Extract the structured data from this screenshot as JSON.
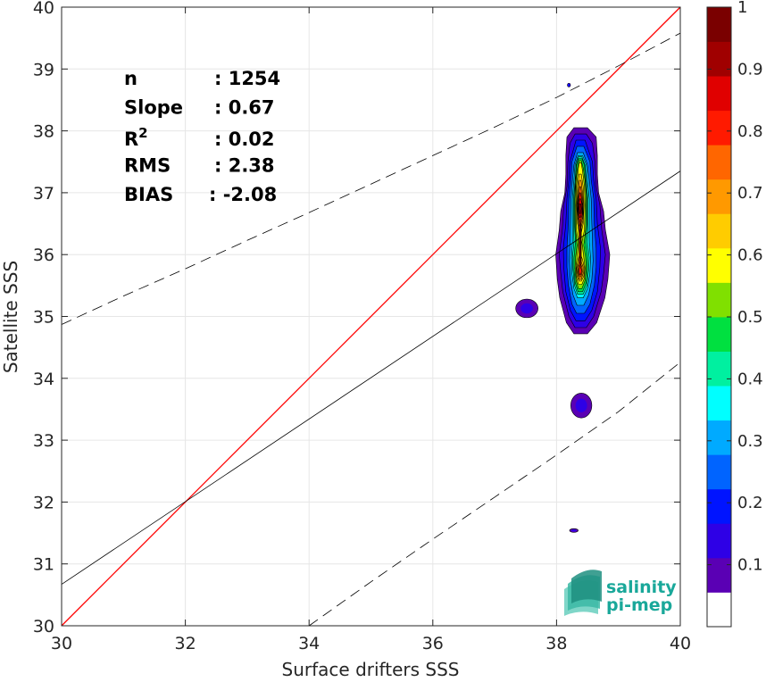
{
  "chart_data": {
    "type": "scatter",
    "title": "",
    "xlabel": "Surface drifters SSS",
    "ylabel": "Satellite SSS",
    "xlim": [
      30,
      40
    ],
    "ylim": [
      30,
      40
    ],
    "xticks": [
      "30",
      "32",
      "34",
      "36",
      "38",
      "40"
    ],
    "yticks": [
      "30",
      "31",
      "32",
      "33",
      "34",
      "35",
      "36",
      "37",
      "38",
      "39",
      "40"
    ],
    "grid": true,
    "stats": [
      {
        "label": "n",
        "sep": ": ",
        "value": "1254"
      },
      {
        "label": "Slope",
        "sep": ": ",
        "value": "0.67"
      },
      {
        "label": "R",
        "sup": "2",
        "sep": ": ",
        "value": "0.02"
      },
      {
        "label": "RMS",
        "sep": ": ",
        "value": "2.38"
      },
      {
        "label": "BIAS",
        "sep": ": ",
        "value": "-2.08"
      }
    ],
    "identity_line": {
      "x": [
        30,
        40
      ],
      "y": [
        30,
        40
      ],
      "color": "#ff0000"
    },
    "regression_line": {
      "x": [
        30,
        40
      ],
      "y": [
        30.67,
        37.35
      ],
      "color": "#000000"
    },
    "upper_dashed_curve": {
      "x": [
        30,
        31,
        32,
        33,
        34,
        35,
        36,
        37,
        38,
        39,
        40
      ],
      "y": [
        34.87,
        35.33,
        35.77,
        36.23,
        36.68,
        37.14,
        37.6,
        38.06,
        38.54,
        39.05,
        39.58
      ]
    },
    "lower_dashed_curve": {
      "x": [
        34,
        35,
        36,
        37,
        38,
        39,
        40
      ],
      "y": [
        30.0,
        30.71,
        31.4,
        32.08,
        32.76,
        33.46,
        34.26
      ]
    },
    "density": {
      "colorbar": {
        "range": [
          0,
          1
        ],
        "ticks": [
          "0.1",
          "0.2",
          "0.3",
          "0.4",
          "0.5",
          "0.6",
          "0.7",
          "0.8",
          "0.9",
          "1"
        ],
        "colors": [
          "#ffffff",
          "#5a00b4",
          "#2e00e6",
          "#0014ff",
          "#0064ff",
          "#00aaff",
          "#00ffff",
          "#00f0a0",
          "#00e040",
          "#80e000",
          "#ffff00",
          "#ffcc00",
          "#ff9900",
          "#ff6600",
          "#ff1a00",
          "#e00000",
          "#a00000",
          "#7a0000"
        ]
      },
      "main_blob": {
        "center_x": 38.38,
        "levels": [
          {
            "value": 0.1,
            "color": "#5a00b4",
            "profile": [
              [
                34.72,
                0.12
              ],
              [
                34.9,
                0.27
              ],
              [
                35.3,
                0.4
              ],
              [
                35.6,
                0.45
              ],
              [
                36.0,
                0.48
              ],
              [
                36.4,
                0.41
              ],
              [
                36.7,
                0.38
              ],
              [
                37.0,
                0.3
              ],
              [
                37.3,
                0.28
              ],
              [
                37.6,
                0.28
              ],
              [
                37.9,
                0.26
              ],
              [
                38.05,
                0.12
              ]
            ]
          },
          {
            "value": 0.15,
            "color": "#2e00e6",
            "profile": [
              [
                34.82,
                0.1
              ],
              [
                35.0,
                0.22
              ],
              [
                35.4,
                0.34
              ],
              [
                35.7,
                0.38
              ],
              [
                36.0,
                0.41
              ],
              [
                36.4,
                0.35
              ],
              [
                36.8,
                0.32
              ],
              [
                37.1,
                0.26
              ],
              [
                37.5,
                0.24
              ],
              [
                37.8,
                0.2
              ],
              [
                37.95,
                0.1
              ]
            ]
          },
          {
            "value": 0.2,
            "color": "#0014ff",
            "profile": [
              [
                34.93,
                0.08
              ],
              [
                35.1,
                0.19
              ],
              [
                35.4,
                0.28
              ],
              [
                35.8,
                0.32
              ],
              [
                36.1,
                0.33
              ],
              [
                36.5,
                0.28
              ],
              [
                36.9,
                0.26
              ],
              [
                37.2,
                0.22
              ],
              [
                37.5,
                0.2
              ],
              [
                37.85,
                0.08
              ]
            ]
          },
          {
            "value": 0.25,
            "color": "#0064ff",
            "profile": [
              [
                35.05,
                0.07
              ],
              [
                35.2,
                0.16
              ],
              [
                35.5,
                0.23
              ],
              [
                35.8,
                0.26
              ],
              [
                36.1,
                0.26
              ],
              [
                36.5,
                0.23
              ],
              [
                36.9,
                0.22
              ],
              [
                37.2,
                0.18
              ],
              [
                37.5,
                0.16
              ],
              [
                37.75,
                0.06
              ]
            ]
          },
          {
            "value": 0.3,
            "color": "#00aaff",
            "profile": [
              [
                35.18,
                0.06
              ],
              [
                35.35,
                0.14
              ],
              [
                35.6,
                0.19
              ],
              [
                35.9,
                0.21
              ],
              [
                36.2,
                0.2
              ],
              [
                36.5,
                0.19
              ],
              [
                36.9,
                0.18
              ],
              [
                37.2,
                0.15
              ],
              [
                37.45,
                0.12
              ],
              [
                37.65,
                0.05
              ]
            ]
          },
          {
            "value": 0.4,
            "color": "#00ffff",
            "profile": [
              [
                35.3,
                0.05
              ],
              [
                35.45,
                0.12
              ],
              [
                35.7,
                0.16
              ],
              [
                35.95,
                0.17
              ],
              [
                36.2,
                0.15
              ],
              [
                36.5,
                0.15
              ],
              [
                36.9,
                0.15
              ],
              [
                37.2,
                0.12
              ],
              [
                37.45,
                0.1
              ],
              [
                37.6,
                0.04
              ]
            ]
          },
          {
            "value": 0.45,
            "color": "#00f0a0",
            "profile": [
              [
                35.36,
                0.05
              ],
              [
                35.5,
                0.11
              ],
              [
                35.75,
                0.14
              ],
              [
                35.95,
                0.15
              ],
              [
                36.2,
                0.12
              ],
              [
                36.5,
                0.13
              ],
              [
                36.9,
                0.13
              ],
              [
                37.2,
                0.1
              ],
              [
                37.45,
                0.08
              ],
              [
                37.58,
                0.03
              ]
            ]
          },
          {
            "value": 0.5,
            "color": "#00e040",
            "profile": [
              [
                35.4,
                0.04
              ],
              [
                35.55,
                0.1
              ],
              [
                35.75,
                0.12
              ],
              [
                35.95,
                0.12
              ],
              [
                36.2,
                0.09
              ],
              [
                36.5,
                0.11
              ],
              [
                36.9,
                0.11
              ],
              [
                37.2,
                0.09
              ],
              [
                37.45,
                0.07
              ],
              [
                37.55,
                0.03
              ]
            ]
          },
          {
            "value": 0.55,
            "color": "#80e000",
            "profile": [
              [
                35.45,
                0.03
              ],
              [
                35.58,
                0.08
              ],
              [
                35.78,
                0.1
              ],
              [
                35.95,
                0.09
              ],
              [
                36.15,
                0.06
              ],
              [
                36.4,
                0.09
              ],
              [
                36.9,
                0.1
              ],
              [
                37.2,
                0.08
              ],
              [
                37.4,
                0.05
              ],
              [
                37.52,
                0.02
              ]
            ]
          },
          {
            "value": 0.6,
            "color": "#ffff00",
            "profile": [
              [
                35.52,
                0.03
              ],
              [
                35.62,
                0.07
              ],
              [
                35.78,
                0.08
              ],
              [
                35.95,
                0.06
              ],
              [
                36.2,
                0.03
              ],
              [
                36.4,
                0.07
              ],
              [
                36.8,
                0.08
              ],
              [
                37.1,
                0.07
              ],
              [
                37.35,
                0.04
              ],
              [
                37.48,
                0.02
              ]
            ]
          },
          {
            "value": 0.65,
            "color": "#ffcc00",
            "profile": [
              [
                35.57,
                0.02
              ],
              [
                35.65,
                0.06
              ],
              [
                35.78,
                0.07
              ],
              [
                35.92,
                0.04
              ],
              [
                36.0,
                0.01
              ],
              [
                36.35,
                0.02
              ],
              [
                36.5,
                0.05
              ],
              [
                36.8,
                0.065
              ],
              [
                37.1,
                0.05
              ],
              [
                37.3,
                0.02
              ]
            ]
          },
          {
            "value": 0.7,
            "color": "#ff9900",
            "profile": [
              [
                35.6,
                0.02
              ],
              [
                35.7,
                0.05
              ],
              [
                35.8,
                0.05
              ],
              [
                35.88,
                0.02
              ],
              [
                36.45,
                0.02
              ],
              [
                36.55,
                0.045
              ],
              [
                36.8,
                0.055
              ],
              [
                37.0,
                0.04
              ],
              [
                37.2,
                0.015
              ]
            ]
          },
          {
            "value": 0.8,
            "color": "#ff6600",
            "profile": [
              [
                35.64,
                0.015
              ],
              [
                35.72,
                0.035
              ],
              [
                35.8,
                0.03
              ],
              [
                35.85,
                0.01
              ],
              [
                36.5,
                0.015
              ],
              [
                36.6,
                0.04
              ],
              [
                36.8,
                0.045
              ],
              [
                36.95,
                0.03
              ],
              [
                37.1,
                0.01
              ]
            ]
          },
          {
            "value": 0.85,
            "color": "#ff1a00",
            "profile": [
              [
                35.67,
                0.01
              ],
              [
                35.74,
                0.025
              ],
              [
                35.8,
                0.01
              ],
              [
                36.55,
                0.01
              ],
              [
                36.65,
                0.035
              ],
              [
                36.8,
                0.038
              ],
              [
                36.92,
                0.02
              ],
              [
                37.0,
                0.008
              ]
            ]
          },
          {
            "value": 0.9,
            "color": "#e00000",
            "profile": [
              [
                36.6,
                0.008
              ],
              [
                36.7,
                0.028
              ],
              [
                36.8,
                0.03
              ],
              [
                36.9,
                0.012
              ]
            ]
          },
          {
            "value": 0.95,
            "color": "#a00000",
            "profile": [
              [
                36.66,
                0.006
              ],
              [
                36.74,
                0.018
              ],
              [
                36.82,
                0.012
              ]
            ]
          }
        ]
      },
      "islands": [
        {
          "x": 37.52,
          "y": 35.13,
          "rx": 0.18,
          "ry": 0.15,
          "color": "#5a00b4",
          "inner": "#2e00e6"
        },
        {
          "x": 38.4,
          "y": 33.56,
          "rx": 0.17,
          "ry": 0.2,
          "color": "#5a00b4",
          "inner": "#2e00e6"
        },
        {
          "x": 38.28,
          "y": 31.54,
          "rx": 0.07,
          "ry": 0.03,
          "color": "#5a00b4",
          "inner": "#2e00e6"
        },
        {
          "x": 38.2,
          "y": 38.74,
          "rx": 0.025,
          "ry": 0.03,
          "color": "#2e00e6",
          "inner": "#0014ff"
        }
      ]
    }
  },
  "logo": {
    "line1": "salinity",
    "line2": "pi-mep"
  }
}
